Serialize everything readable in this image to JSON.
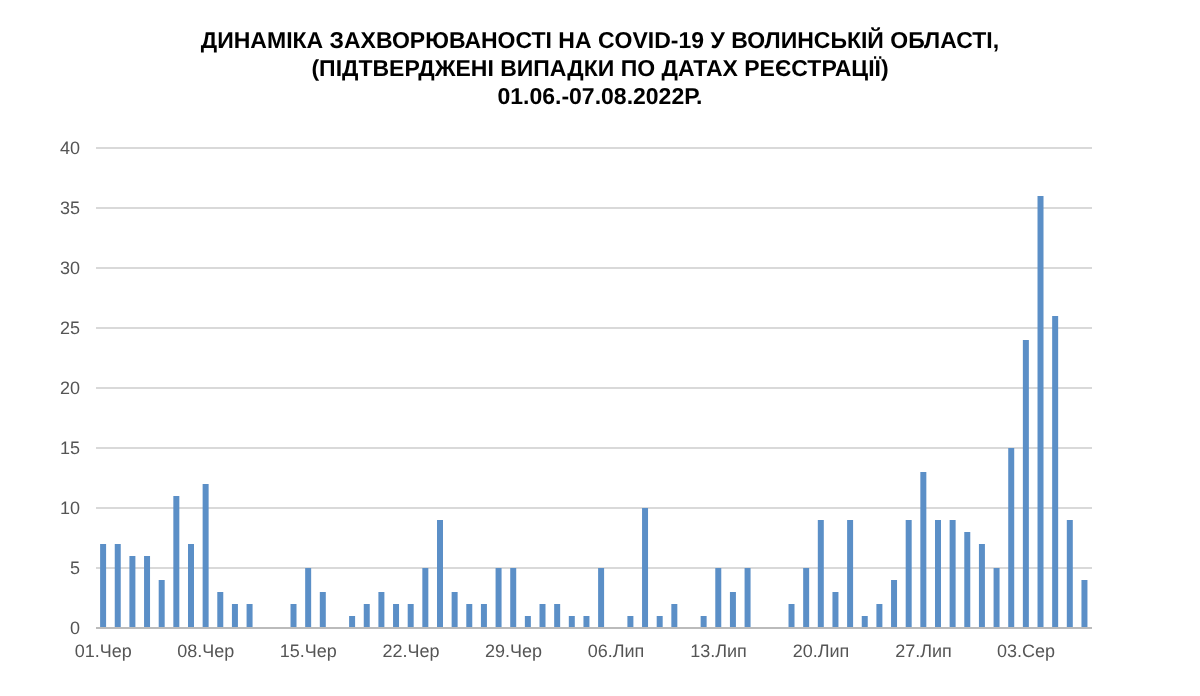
{
  "chart_data": {
    "type": "bar",
    "title": "ДИНАМІКА ЗАХВОРЮВАНОСТІ НА  COVID-19 У ВОЛИНСЬКІЙ ОБЛАСТІ,\n(ПІДТВЕРДЖЕНІ ВИПАДКИ ПО ДАТАХ РЕЄСТРАЦІЇ)\n01.06.-07.08.2022Р.",
    "categories": [
      "01.Чер",
      null,
      null,
      null,
      null,
      null,
      null,
      "08.Чер",
      null,
      null,
      null,
      null,
      null,
      null,
      "15.Чер",
      null,
      null,
      null,
      null,
      null,
      null,
      "22.Чер",
      null,
      null,
      null,
      null,
      null,
      null,
      "29.Чер",
      null,
      null,
      null,
      null,
      null,
      null,
      "06.Лип",
      null,
      null,
      null,
      null,
      null,
      null,
      "13.Лип",
      null,
      null,
      null,
      null,
      null,
      null,
      "20.Лип",
      null,
      null,
      null,
      null,
      null,
      null,
      "27.Лип",
      null,
      null,
      null,
      null,
      null,
      null,
      "03.Сер",
      null,
      null,
      null,
      null
    ],
    "values": [
      7,
      7,
      6,
      6,
      4,
      11,
      7,
      12,
      3,
      2,
      2,
      0,
      0,
      2,
      5,
      3,
      0,
      1,
      2,
      3,
      2,
      2,
      5,
      9,
      3,
      2,
      2,
      5,
      5,
      1,
      2,
      2,
      1,
      1,
      5,
      0,
      1,
      10,
      1,
      2,
      0,
      1,
      5,
      3,
      5,
      0,
      0,
      2,
      5,
      9,
      3,
      9,
      1,
      2,
      4,
      9,
      13,
      9,
      9,
      8,
      7,
      5,
      15,
      24,
      36,
      26,
      9,
      4
    ],
    "color": "#5b8fc7",
    "ylim": [
      0,
      40
    ],
    "yticks": [
      0,
      5,
      10,
      15,
      20,
      25,
      30,
      35,
      40
    ],
    "grid": "y"
  }
}
